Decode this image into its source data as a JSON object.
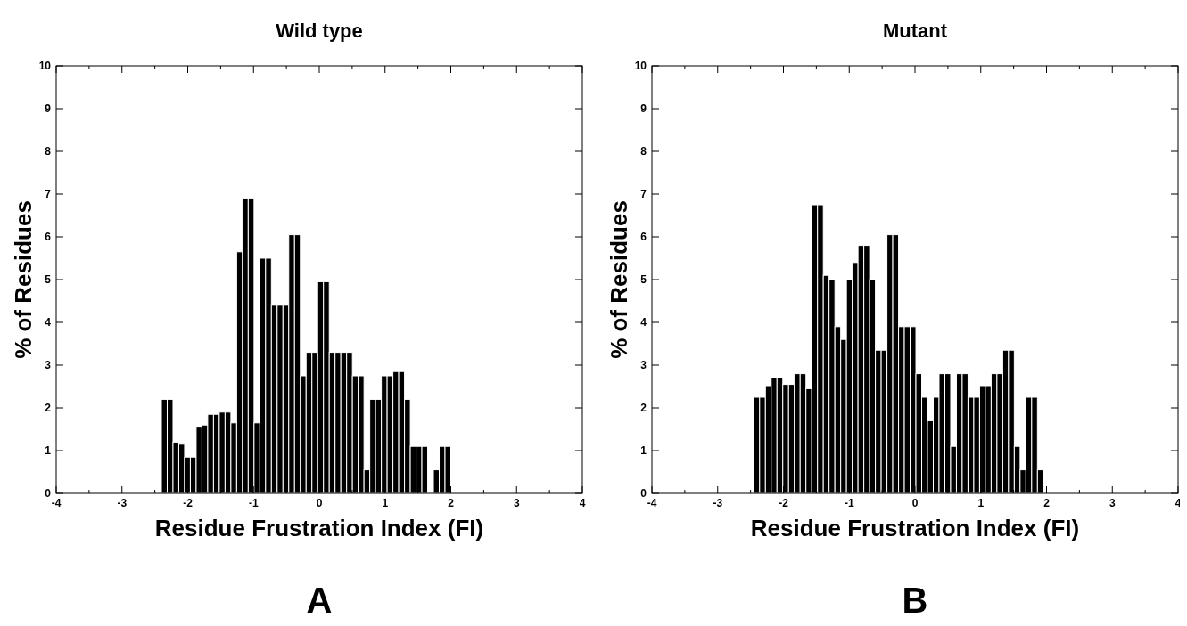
{
  "chart_data": [
    {
      "type": "histogram",
      "title": "Wild  type",
      "xlabel": "Residue Frustration Index (FI)",
      "ylabel": "% of  Residues",
      "annotations": [
        "A"
      ],
      "color": "#000000",
      "bins": [
        -2.4,
        -2.312,
        -2.224,
        -2.136,
        -2.048,
        -1.96,
        -1.872,
        -1.784,
        -1.696,
        -1.608,
        -1.52,
        -1.432,
        -1.344,
        -1.256,
        -1.168,
        -1.08,
        -0.992,
        -0.904,
        -0.816,
        -0.728,
        -0.64,
        -0.552,
        -0.464,
        -0.376,
        -0.288,
        -0.2,
        -0.112,
        -0.024,
        0.064,
        0.152,
        0.24,
        0.328,
        0.416,
        0.504,
        0.592,
        0.68,
        0.768,
        0.856,
        0.944,
        1.032,
        1.12,
        1.208,
        1.296,
        1.384,
        1.472,
        1.56,
        1.648,
        1.736,
        1.824,
        1.912,
        2.0
      ],
      "values": [
        2.2,
        2.2,
        1.2,
        1.15,
        0.85,
        0.85,
        1.55,
        1.6,
        1.85,
        1.85,
        1.9,
        1.9,
        1.65,
        5.65,
        6.9,
        6.9,
        1.65,
        5.5,
        5.5,
        4.4,
        4.4,
        4.4,
        6.05,
        6.05,
        2.75,
        3.3,
        3.3,
        4.95,
        4.95,
        3.3,
        3.3,
        3.3,
        3.3,
        2.75,
        2.75,
        0.55,
        2.2,
        2.2,
        2.75,
        2.75,
        2.85,
        2.85,
        2.2,
        1.1,
        1.1,
        1.1,
        0,
        0.55,
        1.1,
        1.1
      ],
      "xlim": [
        -4,
        4
      ],
      "xticks": [
        -4,
        {
          "value": -3.5,
          "label": null
        },
        -3,
        {
          "value": -2.5,
          "label": null
        },
        -2,
        {
          "value": -1.5,
          "label": null
        },
        -1,
        {
          "value": -0.5,
          "label": null
        },
        0,
        {
          "value": 0.5,
          "label": null
        },
        1,
        {
          "value": 1.5,
          "label": null
        },
        2,
        {
          "value": 2.5,
          "label": null
        },
        3,
        {
          "value": 3.5,
          "label": null
        },
        4
      ],
      "ylim": [
        0,
        10
      ],
      "yticks": [
        0,
        1,
        2,
        3,
        4,
        5,
        6,
        7,
        8,
        9,
        10
      ],
      "grid": false
    },
    {
      "type": "histogram",
      "title": "Mutant",
      "xlabel": "Residue Frustration Index (FI)",
      "ylabel": "% of  Residues",
      "annotations": [
        "B"
      ],
      "color": "#000000",
      "bins": [
        -2.45,
        -2.362,
        -2.274,
        -2.186,
        -2.098,
        -2.01,
        -1.922,
        -1.834,
        -1.746,
        -1.658,
        -1.57,
        -1.482,
        -1.394,
        -1.306,
        -1.218,
        -1.13,
        -1.042,
        -0.954,
        -0.866,
        -0.778,
        -0.69,
        -0.602,
        -0.514,
        -0.426,
        -0.338,
        -0.25,
        -0.162,
        -0.074,
        0.014,
        0.102,
        0.19,
        0.278,
        0.366,
        0.454,
        0.542,
        0.63,
        0.718,
        0.806,
        0.894,
        0.982,
        1.07,
        1.158,
        1.246,
        1.334,
        1.422,
        1.51,
        1.598,
        1.686,
        1.774,
        1.862,
        1.95
      ],
      "values": [
        2.25,
        2.25,
        2.5,
        2.7,
        2.7,
        2.55,
        2.55,
        2.8,
        2.8,
        2.45,
        6.75,
        6.75,
        5.1,
        5.0,
        3.9,
        3.6,
        5.0,
        5.4,
        5.8,
        5.8,
        5.0,
        3.35,
        3.35,
        6.05,
        6.05,
        3.9,
        3.9,
        3.9,
        2.8,
        2.25,
        1.7,
        2.25,
        2.8,
        2.8,
        1.1,
        2.8,
        2.8,
        2.25,
        2.25,
        2.5,
        2.5,
        2.8,
        2.8,
        3.35,
        3.35,
        1.1,
        0.55,
        2.25,
        2.25,
        0.55
      ],
      "xlim": [
        -4,
        4
      ],
      "xticks": [
        -4,
        {
          "value": -3.5,
          "label": null
        },
        -3,
        {
          "value": -2.5,
          "label": null
        },
        -2,
        {
          "value": -1.5,
          "label": null
        },
        -1,
        {
          "value": -0.5,
          "label": null
        },
        0,
        {
          "value": 0.5,
          "label": null
        },
        1,
        {
          "value": 1.5,
          "label": null
        },
        2,
        {
          "value": 2.5,
          "label": null
        },
        3,
        {
          "value": 3.5,
          "label": null
        },
        4
      ],
      "ylim": [
        0,
        10
      ],
      "yticks": [
        0,
        1,
        2,
        3,
        4,
        5,
        6,
        7,
        8,
        9,
        10
      ],
      "grid": false
    }
  ]
}
